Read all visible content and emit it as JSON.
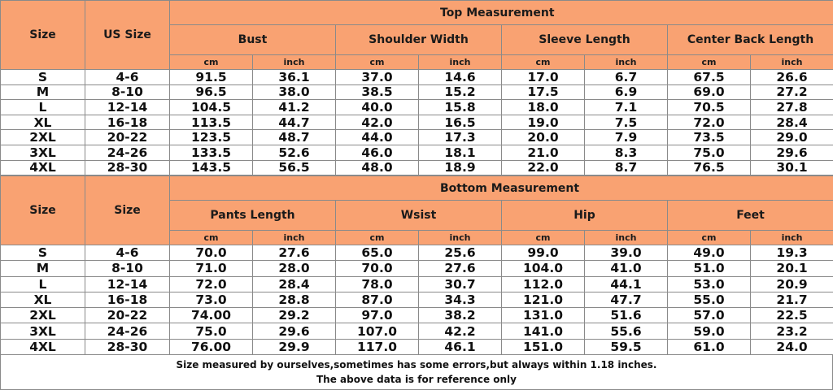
{
  "colors": {
    "header_bg": "#f9a272",
    "border": "#8a8a8a"
  },
  "tables": [
    {
      "size_header": "Size",
      "us_size_header": "US Size",
      "group_title": "Top Measurement",
      "measures": [
        "Bust",
        "Shoulder Width",
        "Sleeve Length",
        "Center Back Length"
      ],
      "units": [
        "cm",
        "inch"
      ],
      "rows": [
        [
          "S",
          "4-6",
          "91.5",
          "36.1",
          "37.0",
          "14.6",
          "17.0",
          "6.7",
          "67.5",
          "26.6"
        ],
        [
          "M",
          "8-10",
          "96.5",
          "38.0",
          "38.5",
          "15.2",
          "17.5",
          "6.9",
          "69.0",
          "27.2"
        ],
        [
          "L",
          "12-14",
          "104.5",
          "41.2",
          "40.0",
          "15.8",
          "18.0",
          "7.1",
          "70.5",
          "27.8"
        ],
        [
          "XL",
          "16-18",
          "113.5",
          "44.7",
          "42.0",
          "16.5",
          "19.0",
          "7.5",
          "72.0",
          "28.4"
        ],
        [
          "2XL",
          "20-22",
          "123.5",
          "48.7",
          "44.0",
          "17.3",
          "20.0",
          "7.9",
          "73.5",
          "29.0"
        ],
        [
          "3XL",
          "24-26",
          "133.5",
          "52.6",
          "46.0",
          "18.1",
          "21.0",
          "8.3",
          "75.0",
          "29.6"
        ],
        [
          "4XL",
          "28-30",
          "143.5",
          "56.5",
          "48.0",
          "18.9",
          "22.0",
          "8.7",
          "76.5",
          "30.1"
        ]
      ]
    },
    {
      "size_header": "Size",
      "us_size_header": "Size",
      "group_title": "Bottom Measurement",
      "measures": [
        "Pants Length",
        "Wsist",
        "Hip",
        "Feet"
      ],
      "units": [
        "cm",
        "inch"
      ],
      "rows": [
        [
          "S",
          "4-6",
          "70.0",
          "27.6",
          "65.0",
          "25.6",
          "99.0",
          "39.0",
          "49.0",
          "19.3"
        ],
        [
          "M",
          "8-10",
          "71.0",
          "28.0",
          "70.0",
          "27.6",
          "104.0",
          "41.0",
          "51.0",
          "20.1"
        ],
        [
          "L",
          "12-14",
          "72.0",
          "28.4",
          "78.0",
          "30.7",
          "112.0",
          "44.1",
          "53.0",
          "20.9"
        ],
        [
          "XL",
          "16-18",
          "73.0",
          "28.8",
          "87.0",
          "34.3",
          "121.0",
          "47.7",
          "55.0",
          "21.7"
        ],
        [
          "2XL",
          "20-22",
          "74.00",
          "29.2",
          "97.0",
          "38.2",
          "131.0",
          "51.6",
          "57.0",
          "22.5"
        ],
        [
          "3XL",
          "24-26",
          "75.0",
          "29.6",
          "107.0",
          "42.2",
          "141.0",
          "55.6",
          "59.0",
          "23.2"
        ],
        [
          "4XL",
          "28-30",
          "76.00",
          "29.9",
          "117.0",
          "46.1",
          "151.0",
          "59.5",
          "61.0",
          "24.0"
        ]
      ]
    }
  ],
  "footer": {
    "line1": "Size measured by ourselves,sometimes has some errors,but always within 1.18 inches.",
    "line2": "The above data is for reference only"
  }
}
